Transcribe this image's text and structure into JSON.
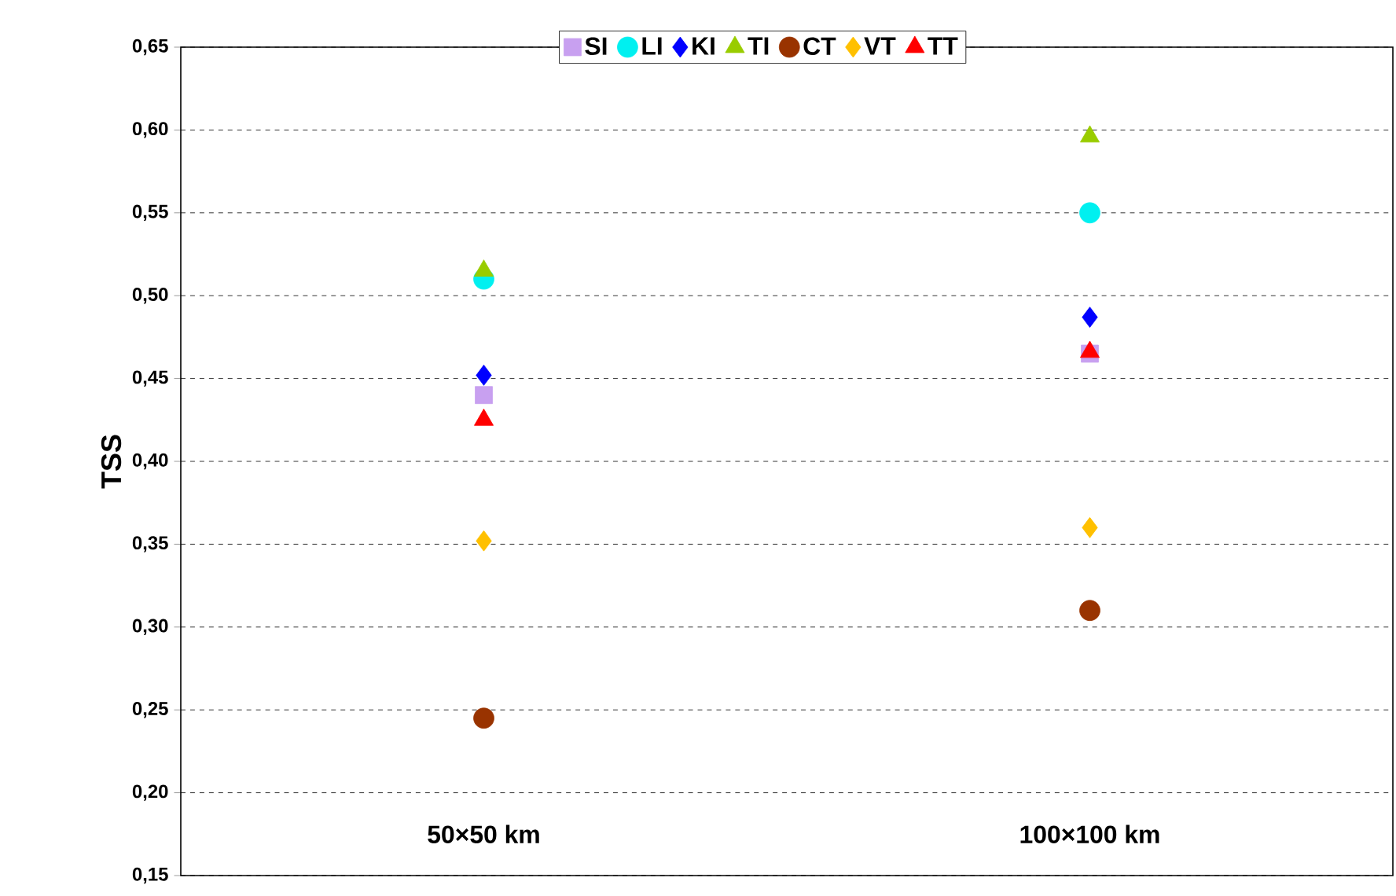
{
  "chart_data": {
    "type": "scatter",
    "ylabel": "TSS",
    "categories": [
      "50×50 km",
      "100×100 km"
    ],
    "ylim": [
      0.15,
      0.65
    ],
    "yticks": [
      {
        "value": 0.15,
        "label": "0,15"
      },
      {
        "value": 0.2,
        "label": "0,20"
      },
      {
        "value": 0.25,
        "label": "0,25"
      },
      {
        "value": 0.3,
        "label": "0,30"
      },
      {
        "value": 0.35,
        "label": "0,35"
      },
      {
        "value": 0.4,
        "label": "0,40"
      },
      {
        "value": 0.45,
        "label": "0,45"
      },
      {
        "value": 0.5,
        "label": "0,50"
      },
      {
        "value": 0.55,
        "label": "0,55"
      },
      {
        "value": 0.6,
        "label": "0,60"
      },
      {
        "value": 0.65,
        "label": "0,65"
      }
    ],
    "grid": "y",
    "line_style": "dashed",
    "legend": "top",
    "series": [
      {
        "name": "SI",
        "color": "#c8a0f0",
        "marker": "square",
        "values": [
          0.44,
          0.465
        ]
      },
      {
        "name": "LI",
        "color": "#00f0f0",
        "marker": "circle",
        "values": [
          0.51,
          0.55
        ]
      },
      {
        "name": "KI",
        "color": "#0000ff",
        "marker": "diamond",
        "values": [
          0.452,
          0.487
        ]
      },
      {
        "name": "TI",
        "color": "#99cc00",
        "marker": "triangle",
        "values": [
          0.515,
          0.596
        ]
      },
      {
        "name": "CT",
        "color": "#993300",
        "marker": "circle",
        "values": [
          0.245,
          0.31
        ]
      },
      {
        "name": "VT",
        "color": "#ffc000",
        "marker": "diamond",
        "values": [
          0.352,
          0.36
        ]
      },
      {
        "name": "TT",
        "color": "#ff0000",
        "marker": "triangle",
        "values": [
          0.425,
          0.466
        ]
      }
    ]
  }
}
